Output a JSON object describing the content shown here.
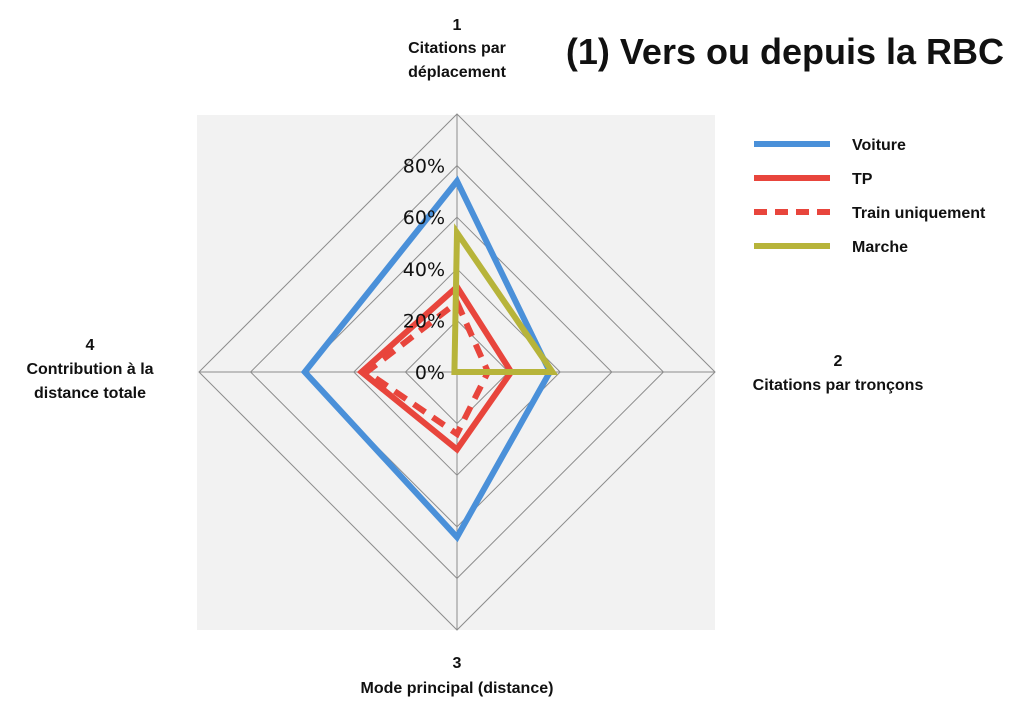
{
  "chart_data": {
    "type": "radar",
    "title": "(1) Vers ou depuis la RBC",
    "axes": [
      {
        "number": "1",
        "label_lines": [
          "Citations par",
          "déplacement"
        ]
      },
      {
        "number": "2",
        "label_lines": [
          "Citations par tronçons"
        ]
      },
      {
        "number": "3",
        "label_lines": [
          "Mode principal (distance)"
        ]
      },
      {
        "number": "4",
        "label_lines": [
          "Contribution à la",
          "distance totale"
        ]
      }
    ],
    "rlim": [
      0,
      100
    ],
    "rings": [
      20,
      40,
      60,
      80,
      100
    ],
    "tick_labels": [
      "0%",
      "20%",
      "40%",
      "60%",
      "80%"
    ],
    "series": [
      {
        "name": "Voiture",
        "values": [
          74,
          36,
          64,
          59
        ],
        "color": "#4a90d9",
        "dashed": false
      },
      {
        "name": "TP",
        "values": [
          33,
          21,
          30,
          37
        ],
        "color": "#e8453c",
        "dashed": false
      },
      {
        "name": "Train uniquement",
        "values": [
          27,
          12,
          24,
          35
        ],
        "color": "#e8453c",
        "dashed": true
      },
      {
        "name": "Marche",
        "values": [
          54,
          37,
          0,
          1
        ],
        "color": "#b7b43a",
        "dashed": false
      }
    ],
    "grid": true,
    "legend_position": "right"
  }
}
